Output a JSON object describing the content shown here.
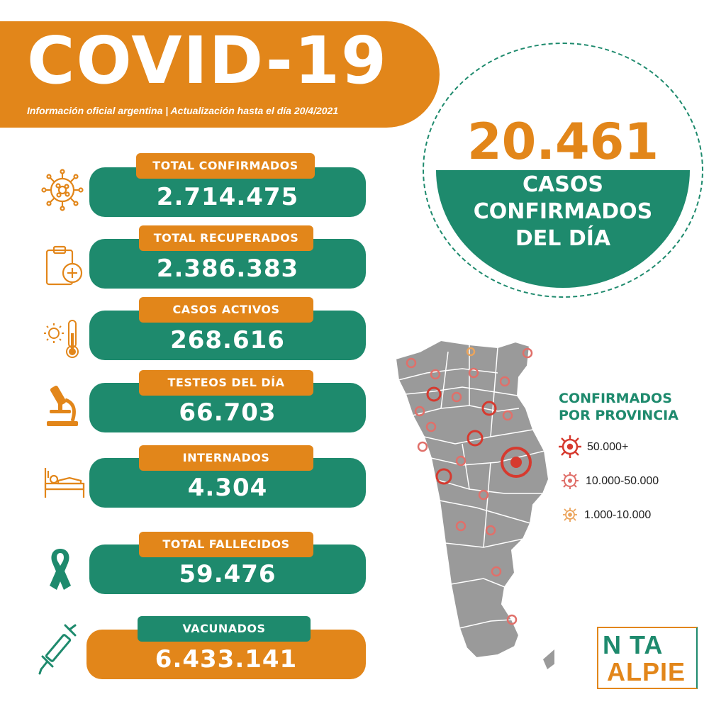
{
  "header": {
    "title": "COVID-19",
    "subtitle": "Información oficial argentina | Actualización hasta el día  20/4/2021"
  },
  "stats": [
    {
      "label": "TOTAL CONFIRMADOS",
      "value": "2.714.475",
      "icon": "virus-icon"
    },
    {
      "label": "TOTAL RECUPERADOS",
      "value": "2.386.383",
      "icon": "clipboard-medical-icon"
    },
    {
      "label": "CASOS ACTIVOS",
      "value": "268.616",
      "icon": "thermometer-icon"
    },
    {
      "label": "TESTEOS DEL DÍA",
      "value": "66.703",
      "icon": "microscope-icon"
    },
    {
      "label": "INTERNADOS",
      "value": "4.304",
      "icon": "hospital-bed-icon"
    },
    {
      "label": "TOTAL FALLECIDOS",
      "value": "59.476",
      "icon": "ribbon-icon"
    },
    {
      "label": "VACUNADOS",
      "value": "6.433.141",
      "icon": "syringe-icon"
    }
  ],
  "daily": {
    "number": "20.461",
    "line1": "CASOS",
    "line2": "CONFIRMADOS",
    "line3": "DEL DÍA"
  },
  "legend": {
    "title_line1": "CONFIRMADOS",
    "title_line2": "POR PROVINCIA",
    "items": [
      {
        "label": "50.000+",
        "color": "#d63a2f"
      },
      {
        "label": "10.000-50.000",
        "color": "#e0706a"
      },
      {
        "label": "1.000-10.000",
        "color": "#eba45c"
      }
    ]
  },
  "logo": {
    "top": "N TA",
    "bottom": "ALPIE"
  },
  "colors": {
    "orange": "#e2861a",
    "green": "#1e8a6d",
    "map_gray": "#9a9a9a"
  }
}
